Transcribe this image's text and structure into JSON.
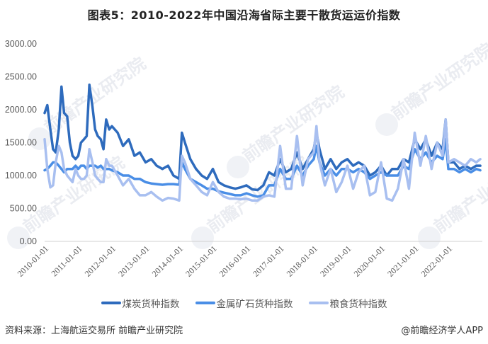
{
  "title": "图表5：2010-2022年中国沿海省际主要干散货运运价指数",
  "footer": {
    "source": "资料来源：上海航运交易所 前瞻产业研究院",
    "credit": "@前瞻经济学人APP"
  },
  "watermark": "前瞻产业研究院",
  "colors": {
    "coal": "#2e6bbd",
    "metal_ore": "#4a8ee6",
    "grain": "#a8bff0",
    "axis": "#d0d0d0"
  },
  "chart_data": {
    "type": "line",
    "title": "图表5：2010-2022年中国沿海省际主要干散货运运价指数",
    "xlabel": "",
    "ylabel": "",
    "ylim": [
      0,
      3000
    ],
    "yticks": [
      "0.00",
      "500.00",
      "1000.00",
      "1500.00",
      "2000.00",
      "2500.00",
      "3000.00"
    ],
    "xticks": [
      "2010-01-01",
      "2011-01-01",
      "2012-01-01",
      "2013-01-01",
      "2014-01-01",
      "2015-01-01",
      "2016-01-01",
      "2017-01-01",
      "2018-01-01",
      "2019-01-01",
      "2020-01-01",
      "2021-01-01",
      "2022-01-01"
    ],
    "grid": false,
    "legend_position": "bottom",
    "x": [
      2010.0,
      2010.08,
      2010.17,
      2010.25,
      2010.33,
      2010.42,
      2010.5,
      2010.58,
      2010.67,
      2010.75,
      2010.83,
      2010.92,
      2011.0,
      2011.08,
      2011.17,
      2011.25,
      2011.33,
      2011.42,
      2011.5,
      2011.58,
      2011.67,
      2011.75,
      2011.83,
      2011.92,
      2012.0,
      2012.17,
      2012.33,
      2012.5,
      2012.67,
      2012.83,
      2013.0,
      2013.17,
      2013.33,
      2013.5,
      2013.67,
      2013.83,
      2014.0,
      2014.08,
      2014.17,
      2014.33,
      2014.5,
      2014.67,
      2014.83,
      2015.0,
      2015.17,
      2015.33,
      2015.5,
      2015.67,
      2015.83,
      2016.0,
      2016.17,
      2016.33,
      2016.5,
      2016.67,
      2016.83,
      2017.0,
      2017.17,
      2017.33,
      2017.5,
      2017.67,
      2017.83,
      2018.0,
      2018.08,
      2018.17,
      2018.33,
      2018.5,
      2018.67,
      2018.83,
      2019.0,
      2019.17,
      2019.33,
      2019.5,
      2019.67,
      2019.83,
      2020.0,
      2020.17,
      2020.33,
      2020.5,
      2020.67,
      2020.83,
      2021.0,
      2021.17,
      2021.33,
      2021.5,
      2021.67,
      2021.83,
      2021.92,
      2022.0,
      2022.17,
      2022.33,
      2022.5,
      2022.67,
      2022.83,
      2022.95
    ],
    "series": [
      {
        "name": "煤炭货种指数",
        "values": [
          1950,
          2070,
          1700,
          1400,
          1350,
          1700,
          2350,
          1950,
          1900,
          1500,
          1300,
          1250,
          1300,
          1500,
          1550,
          1600,
          2380,
          2050,
          1700,
          1600,
          1550,
          1400,
          1850,
          1700,
          1750,
          1650,
          1450,
          1550,
          1300,
          1350,
          1200,
          1250,
          1150,
          1100,
          1150,
          1000,
          950,
          1650,
          1500,
          1250,
          1100,
          1000,
          950,
          1100,
          900,
          850,
          820,
          800,
          820,
          850,
          790,
          780,
          850,
          1050,
          1000,
          1250,
          1050,
          1100,
          1350,
          1100,
          1250,
          1400,
          1650,
          1400,
          1100,
          1250,
          1100,
          1200,
          1250,
          1150,
          1200,
          1150,
          1000,
          1050,
          1150,
          1000,
          1100,
          1100,
          1250,
          1200,
          1550,
          1400,
          1550,
          1300,
          1500,
          1400,
          1850,
          1200,
          1200,
          1100,
          1150,
          1100,
          1150,
          1150
        ]
      },
      {
        "name": "金属矿石货种指数",
        "values": [
          1080,
          1100,
          1150,
          1200,
          1200,
          1150,
          1100,
          1050,
          1100,
          1100,
          1100,
          1150,
          1100,
          1150,
          1150,
          1100,
          1150,
          1150,
          1150,
          1120,
          1150,
          1100,
          1100,
          1100,
          1080,
          1050,
          1000,
          1000,
          950,
          950,
          900,
          880,
          870,
          860,
          870,
          870,
          860,
          1200,
          1100,
          950,
          900,
          850,
          800,
          800,
          760,
          740,
          720,
          700,
          700,
          730,
          700,
          680,
          700,
          850,
          850,
          1100,
          950,
          950,
          1150,
          1000,
          1150,
          1250,
          1450,
          1200,
          1000,
          1100,
          1000,
          1100,
          1100,
          1050,
          1100,
          1050,
          950,
          1000,
          1050,
          1000,
          1000,
          1000,
          1150,
          1100,
          1400,
          1250,
          1350,
          1200,
          1300,
          1250,
          1550,
          1100,
          1100,
          1050,
          1100,
          1050,
          1100,
          1080
        ]
      },
      {
        "name": "粮食货种指数",
        "values": [
          1550,
          1100,
          820,
          850,
          1200,
          1450,
          1350,
          1100,
          1000,
          950,
          900,
          1100,
          1000,
          950,
          950,
          1000,
          1400,
          1200,
          1000,
          950,
          900,
          900,
          1250,
          1150,
          1150,
          1000,
          850,
          950,
          800,
          700,
          700,
          750,
          680,
          620,
          660,
          650,
          620,
          1300,
          1200,
          950,
          850,
          750,
          700,
          900,
          750,
          680,
          650,
          650,
          640,
          650,
          620,
          620,
          680,
          700,
          680,
          1450,
          800,
          800,
          1600,
          850,
          1250,
          1350,
          1750,
          1200,
          850,
          1100,
          750,
          900,
          1150,
          800,
          1050,
          1150,
          700,
          750,
          1200,
          650,
          620,
          800,
          1250,
          800,
          1650,
          1150,
          1600,
          1100,
          1500,
          1300,
          1850,
          1200,
          1250,
          1200,
          1150,
          1250,
          1200,
          1250
        ]
      }
    ]
  },
  "legend": [
    {
      "label": "煤炭货种指数",
      "color": "#2e6bbd"
    },
    {
      "label": "金属矿石货种指数",
      "color": "#4a8ee6"
    },
    {
      "label": "粮食货种指数",
      "color": "#a8bff0"
    }
  ]
}
